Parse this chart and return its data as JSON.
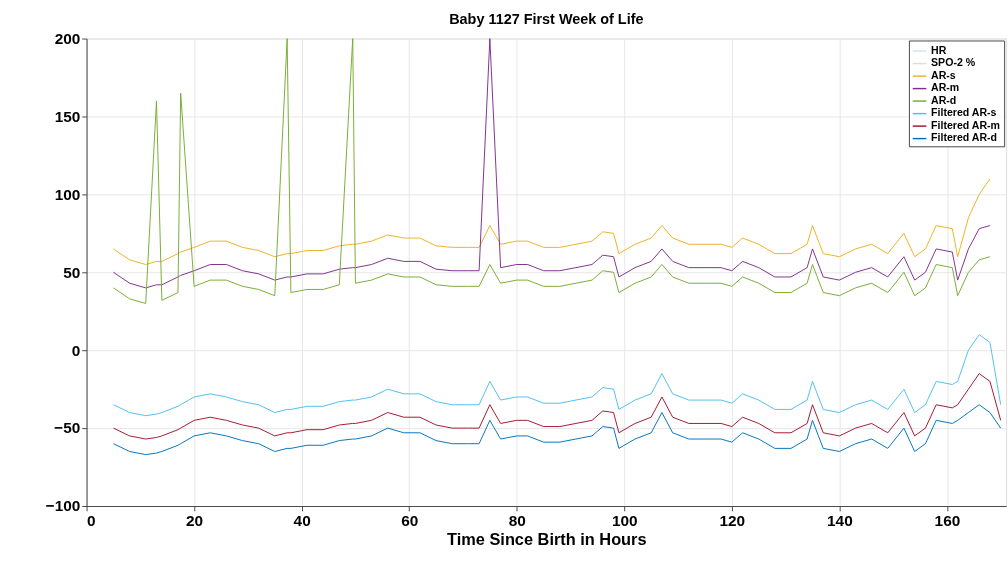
{
  "chart_data": {
    "type": "line",
    "title": "Baby 1127 First Week of Life",
    "xlabel": "Time Since Birth in Hours",
    "xlim": [
      0,
      171
    ],
    "xticks": [
      0,
      20,
      40,
      60,
      80,
      100,
      120,
      140,
      160
    ],
    "ylim": [
      -100,
      200
    ],
    "yticks": [
      -100,
      -50,
      0,
      50,
      100,
      150,
      200
    ],
    "grid": true,
    "legend": "top right",
    "marker": "none",
    "line_style": "solid",
    "x": [
      5,
      8,
      11,
      13,
      14,
      17,
      17.5,
      20,
      23,
      26,
      29,
      32,
      35,
      37.3,
      38,
      41,
      44,
      47,
      49.5,
      50,
      53,
      56,
      59,
      62,
      65,
      68,
      71,
      73,
      75,
      77,
      80,
      82,
      85,
      88,
      91,
      94,
      96,
      98,
      99,
      102,
      105,
      107,
      109,
      112,
      115,
      118,
      120,
      122,
      125,
      128,
      131,
      134,
      135,
      137,
      140,
      143,
      146,
      149,
      152,
      154,
      156,
      158,
      161,
      162,
      164,
      166,
      168,
      170
    ],
    "series": [
      {
        "name": "HR",
        "color": "#c8e6f5",
        "values": [
          null,
          null,
          null,
          null,
          null,
          null,
          null,
          null,
          null,
          null,
          null,
          null,
          null,
          null,
          null,
          null,
          null,
          null,
          null,
          null,
          null,
          null,
          null,
          null,
          null,
          null,
          null,
          null,
          null,
          null,
          null,
          null,
          null,
          null,
          null,
          null,
          null,
          null,
          null,
          null,
          null,
          null,
          null,
          null,
          null,
          null,
          null,
          null,
          null,
          null,
          null,
          null,
          null,
          null,
          null,
          null,
          null,
          null,
          null,
          null,
          null,
          null,
          null,
          null,
          null,
          null,
          null,
          null
        ]
      },
      {
        "name": "SPO-2 %",
        "color": "#f5d5c8",
        "values": [
          null,
          null,
          null,
          null,
          null,
          null,
          null,
          null,
          null,
          null,
          null,
          null,
          null,
          null,
          null,
          null,
          null,
          null,
          null,
          null,
          null,
          null,
          null,
          null,
          null,
          null,
          null,
          null,
          null,
          null,
          null,
          null,
          null,
          null,
          null,
          null,
          null,
          null,
          null,
          null,
          null,
          null,
          null,
          null,
          null,
          null,
          null,
          null,
          null,
          null,
          null,
          null,
          null,
          null,
          null,
          null,
          null,
          null,
          null,
          null,
          null,
          null,
          null,
          null,
          null,
          null,
          null,
          null
        ]
      },
      {
        "name": "AR-s",
        "color": "#edb120",
        "values": [
          65,
          58,
          55,
          57,
          57,
          62,
          63,
          66,
          70,
          70,
          66,
          64,
          60,
          62,
          62,
          64,
          64,
          67,
          68,
          68,
          70,
          74,
          72,
          72,
          67,
          66,
          66,
          66,
          80,
          68,
          70,
          70,
          66,
          66,
          68,
          70,
          76,
          75,
          62,
          68,
          72,
          80,
          72,
          68,
          68,
          68,
          66,
          72,
          68,
          62,
          62,
          68,
          80,
          62,
          60,
          65,
          68,
          62,
          75,
          60,
          65,
          80,
          78,
          60,
          85,
          100,
          110,
          null
        ]
      },
      {
        "name": "AR-m",
        "color": "#7e2f8e",
        "values": [
          50,
          43,
          40,
          42,
          42,
          47,
          48,
          51,
          55,
          55,
          51,
          49,
          45,
          47,
          47,
          49,
          49,
          52,
          53,
          53,
          55,
          59,
          57,
          57,
          52,
          51,
          51,
          51,
          200,
          53,
          55,
          55,
          51,
          51,
          53,
          55,
          61,
          60,
          47,
          53,
          57,
          65,
          57,
          53,
          53,
          53,
          51,
          57,
          53,
          47,
          47,
          53,
          65,
          47,
          45,
          50,
          53,
          47,
          60,
          45,
          50,
          65,
          63,
          45,
          65,
          78,
          80,
          null
        ]
      },
      {
        "name": "AR-d",
        "color": "#77ac30",
        "values": [
          40,
          33,
          30,
          160,
          32,
          37,
          165,
          41,
          45,
          45,
          41,
          39,
          35,
          200,
          37,
          39,
          39,
          42,
          200,
          43,
          45,
          49,
          47,
          47,
          42,
          41,
          41,
          41,
          55,
          43,
          45,
          45,
          41,
          41,
          43,
          45,
          51,
          50,
          37,
          43,
          47,
          55,
          47,
          43,
          43,
          43,
          41,
          47,
          43,
          37,
          37,
          43,
          55,
          37,
          35,
          40,
          43,
          37,
          50,
          35,
          40,
          55,
          53,
          35,
          50,
          58,
          60,
          null
        ]
      },
      {
        "name": "Filtered AR-s",
        "color": "#4dbeee",
        "values": [
          -35,
          -40,
          -42,
          -41,
          -40,
          -36,
          -35,
          -30,
          -28,
          -30,
          -33,
          -35,
          -40,
          -38,
          -38,
          -36,
          -36,
          -33,
          -32,
          -32,
          -30,
          -25,
          -28,
          -28,
          -33,
          -35,
          -35,
          -35,
          -20,
          -32,
          -30,
          -30,
          -34,
          -34,
          -32,
          -30,
          -24,
          -25,
          -38,
          -32,
          -28,
          -15,
          -28,
          -32,
          -32,
          -32,
          -34,
          -28,
          -32,
          -38,
          -38,
          -32,
          -20,
          -38,
          -40,
          -35,
          -32,
          -38,
          -25,
          -40,
          -35,
          -20,
          -22,
          -20,
          0,
          10,
          5,
          -35
        ]
      },
      {
        "name": "Filtered AR-m",
        "color": "#a2142f",
        "values": [
          -50,
          -55,
          -57,
          -56,
          -55,
          -51,
          -50,
          -45,
          -43,
          -45,
          -48,
          -50,
          -55,
          -53,
          -53,
          -51,
          -51,
          -48,
          -47,
          -47,
          -45,
          -40,
          -43,
          -43,
          -48,
          -50,
          -50,
          -50,
          -35,
          -47,
          -45,
          -45,
          -49,
          -49,
          -47,
          -45,
          -39,
          -40,
          -53,
          -47,
          -43,
          -30,
          -43,
          -47,
          -47,
          -47,
          -49,
          -43,
          -47,
          -53,
          -53,
          -47,
          -35,
          -53,
          -55,
          -50,
          -47,
          -53,
          -40,
          -55,
          -50,
          -35,
          -37,
          -35,
          -25,
          -15,
          -20,
          -45
        ]
      },
      {
        "name": "Filtered AR-d",
        "color": "#0072bd",
        "values": [
          -60,
          -65,
          -67,
          -66,
          -65,
          -61,
          -60,
          -55,
          -53,
          -55,
          -58,
          -60,
          -65,
          -63,
          -63,
          -61,
          -61,
          -58,
          -57,
          -57,
          -55,
          -50,
          -53,
          -53,
          -58,
          -60,
          -60,
          -60,
          -45,
          -57,
          -55,
          -55,
          -59,
          -59,
          -57,
          -55,
          -49,
          -50,
          -63,
          -57,
          -53,
          -40,
          -53,
          -57,
          -57,
          -57,
          -59,
          -53,
          -57,
          -63,
          -63,
          -57,
          -45,
          -63,
          -65,
          -60,
          -57,
          -63,
          -50,
          -65,
          -60,
          -45,
          -47,
          -45,
          -40,
          -35,
          -40,
          -50
        ]
      }
    ]
  }
}
